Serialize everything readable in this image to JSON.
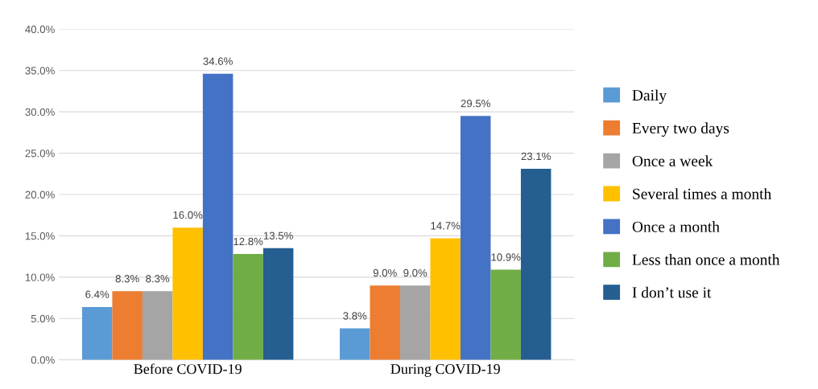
{
  "chart_data": {
    "type": "bar",
    "categories": [
      "Before COVID-19",
      "During COVID-19"
    ],
    "series": [
      {
        "name": "Daily",
        "color": "#5b9bd5",
        "values": [
          6.4,
          3.8
        ],
        "value_labels": [
          "6.4%",
          "3.8%"
        ]
      },
      {
        "name": "Every two days",
        "color": "#ed7d31",
        "values": [
          8.3,
          9.0
        ],
        "value_labels": [
          "8.3%",
          "9.0%"
        ]
      },
      {
        "name": "Once a week",
        "color": "#a5a5a5",
        "values": [
          8.3,
          9.0
        ],
        "value_labels": [
          "8.3%",
          "9.0%"
        ]
      },
      {
        "name": "Several times a month",
        "color": "#ffc000",
        "values": [
          16.0,
          14.7
        ],
        "value_labels": [
          "16.0%",
          "14.7%"
        ]
      },
      {
        "name": "Once a month",
        "color": "#4472c4",
        "values": [
          34.6,
          29.5
        ],
        "value_labels": [
          "34.6%",
          "29.5%"
        ]
      },
      {
        "name": "Less than once a month",
        "color": "#70ad47",
        "values": [
          12.8,
          10.9
        ],
        "value_labels": [
          "12.8%",
          "10.9%"
        ]
      },
      {
        "name": "I don’t use it",
        "color": "#255e91",
        "values": [
          13.5,
          23.1
        ],
        "value_labels": [
          "13.5%",
          "23.1%"
        ]
      }
    ],
    "ylim": [
      0,
      40
    ],
    "yticks": [
      {
        "value": 0,
        "label": "0.0%"
      },
      {
        "value": 5,
        "label": "5.0%"
      },
      {
        "value": 10,
        "label": "10.0%"
      },
      {
        "value": 15,
        "label": "15.0%"
      },
      {
        "value": 20,
        "label": "20.0%"
      },
      {
        "value": 25,
        "label": "25.0%"
      },
      {
        "value": 30,
        "label": "30.0%"
      },
      {
        "value": 35,
        "label": "35.0%"
      },
      {
        "value": 40,
        "label": "40.0%"
      }
    ],
    "grid": "y",
    "legend": "right"
  }
}
